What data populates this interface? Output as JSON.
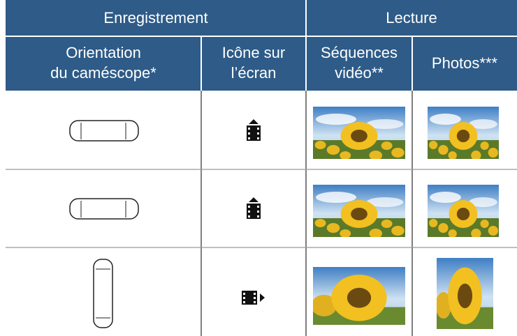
{
  "header": {
    "groups": [
      "Enregistrement",
      "Lecture"
    ],
    "columns": [
      [
        "Orientation",
        "du caméscope*"
      ],
      [
        "Icône sur",
        "l’écran"
      ],
      [
        "Séquences",
        "vidéo**"
      ],
      [
        "Photos***"
      ]
    ]
  }
}
